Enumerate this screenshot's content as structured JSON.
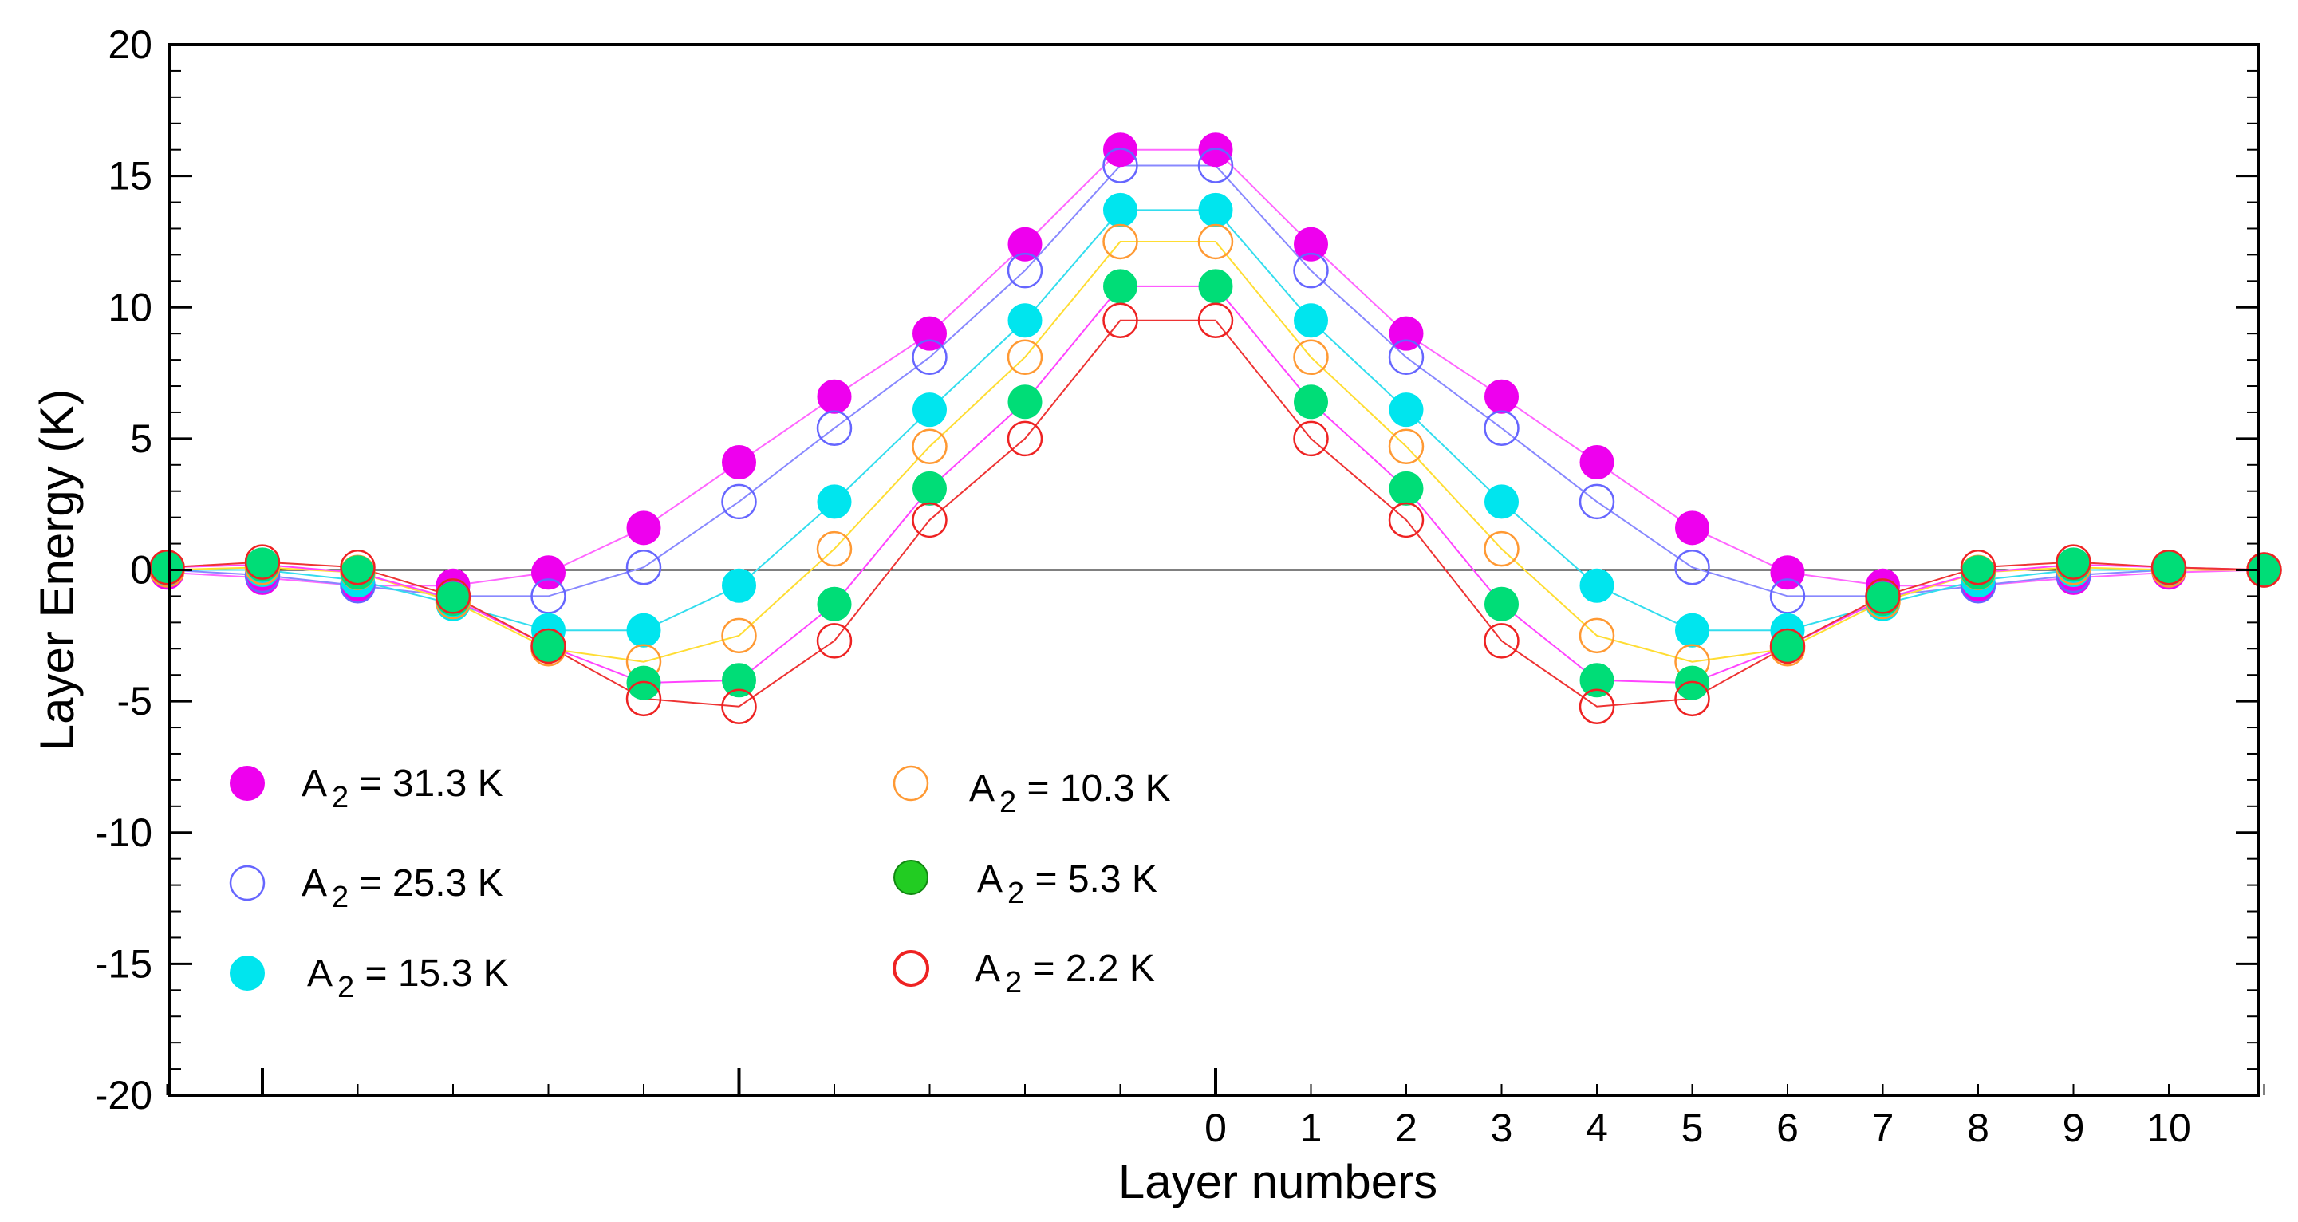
{
  "chart_data": {
    "type": "line",
    "title": "",
    "xlabel": "Layer numbers",
    "ylabel": "Layer Energy (K)",
    "ylim": [
      -20,
      20
    ],
    "yticks": [
      "20",
      "15",
      "10",
      "5",
      "0",
      "-5",
      "-10",
      "-15",
      "-20"
    ],
    "xtick_labels": [
      "0",
      "1",
      "2",
      "3",
      "4",
      "5",
      "6",
      "7",
      "8",
      "9",
      "10"
    ],
    "x": [
      -11,
      -10,
      -9,
      -8,
      -7,
      -6,
      -5,
      -4,
      -3,
      -2,
      -1,
      0,
      1,
      2,
      3,
      4,
      5,
      6,
      7,
      8,
      9,
      10,
      11
    ],
    "grid": false,
    "zero_line": true,
    "legend": {
      "placement": "lower-left",
      "entries": [
        {
          "prefix": "A",
          "sub": "2",
          "suffix": " = 31.3  K"
        },
        {
          "prefix": "A",
          "sub": "2",
          "suffix": " = 25.3  K"
        },
        {
          "prefix": "A",
          "sub": "2",
          "suffix": " = 15.3  K"
        },
        {
          "prefix": "A",
          "sub": "2",
          "suffix": " = 10.3  K"
        },
        {
          "prefix": "A",
          "sub": "2",
          "suffix": " = 5.3  K"
        },
        {
          "prefix": "A",
          "sub": "2",
          "suffix": " = 2.2  K"
        }
      ]
    },
    "series": [
      {
        "name": "A2 = 31.3 K",
        "color": "#ee00ee",
        "line_color": "#ff66ff",
        "marker": "filled",
        "values": [
          -0.1,
          -0.3,
          -0.6,
          -0.6,
          -0.1,
          1.6,
          4.1,
          6.6,
          9.0,
          12.4,
          16.0,
          16.0,
          12.4,
          9.0,
          6.6,
          4.1,
          1.6,
          -0.1,
          -0.6,
          -0.6,
          -0.3,
          -0.1,
          0
        ]
      },
      {
        "name": "A2 = 25.3 K",
        "color": "#6666ff",
        "line_color": "#8888ff",
        "marker": "open",
        "values": [
          0,
          -0.2,
          -0.6,
          -1.0,
          -1.0,
          0.1,
          2.6,
          5.4,
          8.1,
          11.4,
          15.4,
          15.4,
          11.4,
          8.1,
          5.4,
          2.6,
          0.1,
          -1.0,
          -1.0,
          -0.6,
          -0.2,
          0,
          0
        ]
      },
      {
        "name": "A2 = 15.3 K",
        "color": "#00e5ee",
        "line_color": "#33ddee",
        "marker": "filled",
        "values": [
          0,
          0,
          -0.4,
          -1.3,
          -2.3,
          -2.3,
          -0.6,
          2.6,
          6.1,
          9.5,
          13.7,
          13.7,
          9.5,
          6.1,
          2.6,
          -0.6,
          -2.3,
          -2.3,
          -1.3,
          -0.4,
          0,
          0,
          0
        ]
      },
      {
        "name": "A2 = 10.3 K",
        "color": "#ff9933",
        "line_color": "#ffdd33",
        "marker": "open",
        "values": [
          0,
          0.1,
          -0.1,
          -1.2,
          -3.0,
          -3.5,
          -2.5,
          0.8,
          4.7,
          8.1,
          12.5,
          12.5,
          8.1,
          4.7,
          0.8,
          -2.5,
          -3.5,
          -3.0,
          -1.2,
          -0.1,
          0.1,
          0,
          0
        ]
      },
      {
        "name": "A2 = 5.3 K",
        "color": "#00dd77",
        "line_color": "#ff44ff",
        "marker": "filled",
        "values": [
          0.1,
          0.2,
          -0.1,
          -1.1,
          -2.9,
          -4.3,
          -4.2,
          -1.3,
          3.1,
          6.4,
          10.8,
          10.8,
          6.4,
          3.1,
          -1.3,
          -4.2,
          -4.3,
          -2.9,
          -1.1,
          -0.1,
          0.2,
          0.1,
          0
        ]
      },
      {
        "name": "A2 = 2.2 K",
        "color": "#ee2222",
        "line_color": "#ee3333",
        "marker": "open",
        "values": [
          0.1,
          0.3,
          0.1,
          -1.0,
          -2.9,
          -4.9,
          -5.2,
          -2.7,
          1.9,
          5.0,
          9.5,
          9.5,
          5.0,
          1.9,
          -2.7,
          -5.2,
          -4.9,
          -2.9,
          -1.0,
          0.1,
          0.3,
          0.1,
          0
        ]
      }
    ]
  }
}
